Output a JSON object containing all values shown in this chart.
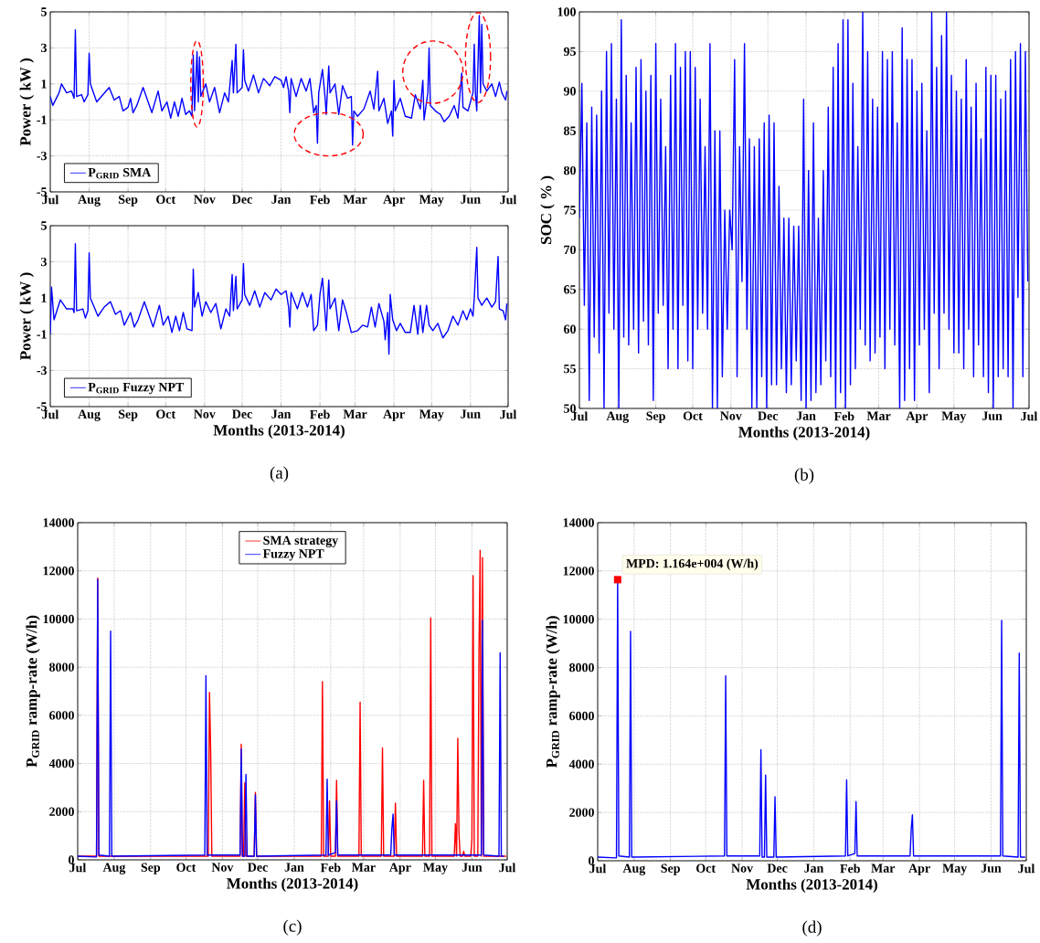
{
  "chart_data": [
    {
      "type": "line",
      "ylabel": "Power ( kW )",
      "xlim": [
        "2013-07-01",
        "2014-07-01"
      ],
      "ylim": [
        -5,
        5
      ],
      "yticks": [
        -5,
        -3,
        -1,
        1,
        3,
        5
      ],
      "grid": true,
      "legend": "bottom left",
      "xticks": [
        {
          "value": "2013-07-01",
          "label": "Jul"
        },
        {
          "value": "2013-08-01",
          "label": "Aug"
        },
        {
          "value": "2013-09-01",
          "label": "Sep"
        },
        {
          "value": "2013-10-01",
          "label": "Oct"
        },
        {
          "value": "2013-11-01",
          "label": "Nov"
        },
        {
          "value": "2013-12-01",
          "label": "Dec"
        },
        {
          "value": "2014-01-01",
          "label": "Jan"
        },
        {
          "value": "2014-02-01",
          "label": "Feb"
        },
        {
          "value": "2014-03-01",
          "label": "Mar"
        },
        {
          "value": "2014-04-01",
          "label": "Apr"
        },
        {
          "value": "2014-05-01",
          "label": "May"
        },
        {
          "value": "2014-06-01",
          "label": "Jun"
        },
        {
          "value": "2014-07-01",
          "label": "Jul"
        }
      ],
      "series": [
        {
          "name": "P$_{GRID}$ SMA",
          "color": "#0000ff",
          "x": [
            "2013-07-01",
            "2013-07-03",
            "2013-07-08",
            "2013-07-10",
            "2013-07-14",
            "2013-07-18",
            "2013-07-20",
            "2013-07-21",
            "2013-07-22",
            "2013-07-26",
            "2013-07-28",
            "2013-07-31",
            "2013-08-01",
            "2013-08-02",
            "2013-08-04",
            "2013-08-07",
            "2013-08-12",
            "2013-08-17",
            "2013-08-21",
            "2013-08-25",
            "2013-08-28",
            "2013-09-01",
            "2013-09-03",
            "2013-09-05",
            "2013-09-08",
            "2013-09-13",
            "2013-09-17",
            "2013-09-20",
            "2013-09-25",
            "2013-09-28",
            "2013-10-02",
            "2013-10-05",
            "2013-10-08",
            "2013-10-11",
            "2013-10-14",
            "2013-10-17",
            "2013-10-20",
            "2013-10-22",
            "2013-10-23",
            "2013-10-24",
            "2013-10-26",
            "2013-10-27",
            "2013-10-28",
            "2013-10-29",
            "2013-11-02",
            "2013-11-05",
            "2013-11-09",
            "2013-11-13",
            "2013-11-17",
            "2013-11-20",
            "2013-11-23",
            "2013-11-24",
            "2013-11-26",
            "2013-11-27",
            "2013-12-01",
            "2013-12-02",
            "2013-12-03",
            "2013-12-06",
            "2013-12-10",
            "2013-12-14",
            "2013-12-18",
            "2013-12-23",
            "2013-12-27",
            "2014-01-01",
            "2014-01-03",
            "2014-01-05",
            "2014-01-07",
            "2014-01-08",
            "2014-01-09",
            "2014-01-13",
            "2014-01-17",
            "2014-01-21",
            "2014-01-24",
            "2014-01-27",
            "2014-01-29",
            "2014-01-30",
            "2014-01-31",
            "2014-02-03",
            "2014-02-05",
            "2014-02-06",
            "2014-02-08",
            "2014-02-09",
            "2014-02-13",
            "2014-02-16",
            "2014-02-19",
            "2014-02-23",
            "2014-02-26",
            "2014-02-27",
            "2014-02-28",
            "2014-03-03",
            "2014-03-08",
            "2014-03-13",
            "2014-03-16",
            "2014-03-19",
            "2014-03-20",
            "2014-03-24",
            "2014-03-27",
            "2014-03-30",
            "2014-03-31",
            "2014-04-01",
            "2014-04-02",
            "2014-04-06",
            "2014-04-10",
            "2014-04-15",
            "2014-04-18",
            "2014-04-22",
            "2014-04-24",
            "2014-04-25",
            "2014-04-28",
            "2014-04-29",
            "2014-04-30",
            "2014-05-04",
            "2014-05-08",
            "2014-05-11",
            "2014-05-15",
            "2014-05-19",
            "2014-05-22",
            "2014-05-25",
            "2014-05-26",
            "2014-05-30",
            "2014-06-01",
            "2014-06-03",
            "2014-06-04",
            "2014-06-05",
            "2014-06-06",
            "2014-06-08",
            "2014-06-09",
            "2014-06-10",
            "2014-06-11",
            "2014-06-14",
            "2014-06-18",
            "2014-06-21",
            "2014-06-24",
            "2014-06-26",
            "2014-06-29",
            "2014-06-30"
          ],
          "values": [
            0.3,
            -0.2,
            0.5,
            1.0,
            0.5,
            0.6,
            0.2,
            4.0,
            0.3,
            0.4,
            0.0,
            0.4,
            2.7,
            1.0,
            0.6,
            0.0,
            0.4,
            0.8,
            0.1,
            0.3,
            -0.5,
            -0.3,
            0.2,
            -0.6,
            -0.2,
            0.8,
            0.0,
            -0.6,
            0.6,
            -0.5,
            0.0,
            -0.9,
            0.0,
            -0.8,
            0.2,
            -0.7,
            -0.5,
            -0.8,
            2.6,
            -0.5,
            2.8,
            0.0,
            2.5,
            0.3,
            1.0,
            0.0,
            0.8,
            -0.6,
            0.5,
            0.0,
            2.3,
            0.5,
            3.2,
            0.5,
            0.8,
            2.9,
            1.2,
            0.6,
            1.5,
            0.5,
            1.3,
            0.9,
            1.4,
            1.2,
            0.8,
            1.4,
            0.6,
            -0.6,
            1.3,
            0.3,
            1.3,
            0.6,
            1.3,
            -0.6,
            -0.2,
            -2.3,
            0.5,
            1.8,
            0.3,
            -0.7,
            2.0,
            0.5,
            1.0,
            -0.7,
            0.9,
            0.2,
            0.3,
            -2.4,
            -0.5,
            -0.8,
            -0.4,
            0.6,
            -0.4,
            1.7,
            -0.5,
            0.2,
            -1.2,
            -0.5,
            -1.9,
            1.2,
            -0.5,
            0.2,
            -0.8,
            -0.9,
            0.4,
            -0.4,
            1.2,
            -1.0,
            0.5,
            3.0,
            -0.2,
            -0.5,
            -0.7,
            -1.1,
            -0.8,
            -0.2,
            -0.9,
            1.6,
            -0.3,
            -0.5,
            0.0,
            0.5,
            3.2,
            0.4,
            -0.5,
            4.8,
            0.5,
            4.3,
            1.0,
            0.6,
            1.0,
            0.3,
            1.1,
            0.5,
            0.1,
            0.6
          ]
        }
      ]
    },
    {
      "type": "line",
      "xlabel": "Months (2013-2014)",
      "ylabel": "Power ( kW )",
      "xlim": [
        "2013-07-01",
        "2014-07-01"
      ],
      "ylim": [
        -5,
        5
      ],
      "yticks": [
        -5,
        -3,
        -1,
        1,
        3,
        5
      ],
      "grid": true,
      "legend": "bottom left",
      "annotations": [
        "(a)"
      ],
      "xticks": [
        {
          "value": "2013-07-01",
          "label": "Jul"
        },
        {
          "value": "2013-08-01",
          "label": "Aug"
        },
        {
          "value": "2013-09-01",
          "label": "Sep"
        },
        {
          "value": "2013-10-01",
          "label": "Oct"
        },
        {
          "value": "2013-11-01",
          "label": "Nov"
        },
        {
          "value": "2013-12-01",
          "label": "Dec"
        },
        {
          "value": "2014-01-01",
          "label": "Jan"
        },
        {
          "value": "2014-02-01",
          "label": "Feb"
        },
        {
          "value": "2014-03-01",
          "label": "Mar"
        },
        {
          "value": "2014-04-01",
          "label": "Apr"
        },
        {
          "value": "2014-05-01",
          "label": "May"
        },
        {
          "value": "2014-06-01",
          "label": "Jun"
        },
        {
          "value": "2014-07-01",
          "label": "Jul"
        }
      ],
      "series": [
        {
          "name": "P$_{GRID}$ Fuzzy NPT",
          "color": "#0000ff",
          "x": [
            "2013-07-01",
            "2013-07-02",
            "2013-07-04",
            "2013-07-09",
            "2013-07-14",
            "2013-07-19",
            "2013-07-20",
            "2013-07-21",
            "2013-07-22",
            "2013-07-27",
            "2013-07-29",
            "2013-07-31",
            "2013-08-01",
            "2013-08-02",
            "2013-08-05",
            "2013-08-08",
            "2013-08-13",
            "2013-08-18",
            "2013-08-22",
            "2013-08-26",
            "2013-08-29",
            "2013-09-03",
            "2013-09-06",
            "2013-09-09",
            "2013-09-14",
            "2013-09-18",
            "2013-09-21",
            "2013-09-26",
            "2013-09-29",
            "2013-10-03",
            "2013-10-06",
            "2013-10-09",
            "2013-10-12",
            "2013-10-15",
            "2013-10-18",
            "2013-10-22",
            "2013-10-23",
            "2013-10-24",
            "2013-10-27",
            "2013-10-30",
            "2013-11-02",
            "2013-11-06",
            "2013-11-10",
            "2013-11-14",
            "2013-11-18",
            "2013-11-21",
            "2013-11-23",
            "2013-11-24",
            "2013-11-26",
            "2013-11-27",
            "2013-12-01",
            "2013-12-02",
            "2013-12-03",
            "2013-12-07",
            "2013-12-11",
            "2013-12-15",
            "2013-12-19",
            "2013-12-24",
            "2013-12-28",
            "2014-01-01",
            "2014-01-05",
            "2014-01-07",
            "2014-01-08",
            "2014-01-09",
            "2014-01-14",
            "2014-01-18",
            "2014-01-22",
            "2014-01-25",
            "2014-01-27",
            "2014-01-30",
            "2014-02-01",
            "2014-02-03",
            "2014-02-05",
            "2014-02-06",
            "2014-02-08",
            "2014-02-09",
            "2014-02-13",
            "2014-02-16",
            "2014-02-19",
            "2014-02-22",
            "2014-02-26",
            "2014-03-03",
            "2014-03-07",
            "2014-03-11",
            "2014-03-14",
            "2014-03-17",
            "2014-03-20",
            "2014-03-24",
            "2014-03-25",
            "2014-03-27",
            "2014-03-28",
            "2014-03-29",
            "2014-03-31",
            "2014-04-03",
            "2014-04-06",
            "2014-04-10",
            "2014-04-14",
            "2014-04-17",
            "2014-04-20",
            "2014-04-22",
            "2014-04-24",
            "2014-04-27",
            "2014-04-29",
            "2014-05-02",
            "2014-05-06",
            "2014-05-10",
            "2014-05-14",
            "2014-05-18",
            "2014-05-22",
            "2014-05-26",
            "2014-05-29",
            "2014-06-01",
            "2014-06-03",
            "2014-06-04",
            "2014-06-06",
            "2014-06-07",
            "2014-06-10",
            "2014-06-14",
            "2014-06-18",
            "2014-06-21",
            "2014-06-23",
            "2014-06-24",
            "2014-06-27",
            "2014-06-29",
            "2014-06-30"
          ],
          "values": [
            -1.0,
            1.6,
            -0.2,
            0.9,
            0.4,
            0.4,
            0.2,
            4.0,
            0.3,
            0.4,
            -0.1,
            0.3,
            3.5,
            1.0,
            0.5,
            0.0,
            0.5,
            0.8,
            0.1,
            0.3,
            -0.5,
            0.2,
            -0.6,
            -0.2,
            0.8,
            0.0,
            -0.6,
            0.6,
            -0.5,
            0.0,
            -0.9,
            0.0,
            -0.8,
            0.2,
            -0.7,
            -0.8,
            2.6,
            0.5,
            1.3,
            0.0,
            0.8,
            0.2,
            0.7,
            -0.7,
            0.4,
            0.0,
            2.3,
            0.3,
            2.2,
            0.4,
            0.9,
            2.9,
            1.2,
            0.6,
            1.4,
            0.5,
            1.3,
            0.9,
            1.5,
            1.2,
            1.4,
            0.5,
            -0.6,
            1.3,
            0.4,
            1.3,
            0.5,
            1.2,
            -0.8,
            -0.5,
            1.2,
            2.1,
            0.2,
            -0.8,
            2.0,
            0.4,
            1.0,
            -0.8,
            0.9,
            0.2,
            -0.9,
            -0.8,
            -0.5,
            -0.6,
            0.5,
            -0.6,
            0.7,
            -0.3,
            -1.3,
            0.2,
            -2.1,
            1.2,
            -0.2,
            -0.8,
            -0.4,
            -0.9,
            -0.9,
            0.6,
            -1.0,
            0.6,
            -0.9,
            0.6,
            -0.5,
            -0.8,
            -0.4,
            -1.2,
            -0.8,
            0.0,
            -0.5,
            0.3,
            -0.2,
            0.4,
            0.0,
            1.0,
            3.8,
            1.0,
            0.6,
            1.0,
            0.5,
            0.8,
            3.3,
            0.4,
            0.3,
            -0.2,
            0.7
          ]
        }
      ]
    },
    {
      "type": "line",
      "xlabel": "Months (2013-2014)",
      "ylabel": "SOC ( % )",
      "xlim": [
        "2013-07-01",
        "2014-07-01"
      ],
      "ylim": [
        50,
        100
      ],
      "yticks": [
        50,
        55,
        60,
        65,
        70,
        75,
        80,
        85,
        90,
        95,
        100
      ],
      "grid": true,
      "annotations": [
        "(b)"
      ],
      "xticks": [
        {
          "value": "2013-07-01",
          "label": "Jul"
        },
        {
          "value": "2013-08-01",
          "label": "Aug"
        },
        {
          "value": "2013-09-01",
          "label": "Sep"
        },
        {
          "value": "2013-10-01",
          "label": "Oct"
        },
        {
          "value": "2013-11-01",
          "label": "Nov"
        },
        {
          "value": "2013-12-01",
          "label": "Dec"
        },
        {
          "value": "2014-01-01",
          "label": "Jan"
        },
        {
          "value": "2014-02-01",
          "label": "Feb"
        },
        {
          "value": "2014-03-01",
          "label": "Mar"
        },
        {
          "value": "2014-04-01",
          "label": "Apr"
        },
        {
          "value": "2014-05-01",
          "label": "May"
        },
        {
          "value": "2014-06-01",
          "label": "Jun"
        },
        {
          "value": "2014-07-01",
          "label": "Jul"
        }
      ],
      "series": [
        {
          "color": "#0000ff",
          "x": [
            "2013-07-01",
            "2013-07-03",
            "2013-07-05",
            "2013-07-07",
            "2013-07-09",
            "2013-07-11",
            "2013-07-13",
            "2013-07-15",
            "2013-07-17",
            "2013-07-19",
            "2013-07-21",
            "2013-07-23",
            "2013-07-25",
            "2013-07-27",
            "2013-07-29",
            "2013-07-31",
            "2013-08-02",
            "2013-08-04",
            "2013-08-06",
            "2013-08-08",
            "2013-08-10",
            "2013-08-12",
            "2013-08-14",
            "2013-08-16",
            "2013-08-18",
            "2013-08-20",
            "2013-08-22",
            "2013-08-24",
            "2013-08-26",
            "2013-08-28",
            "2013-08-30",
            "2013-09-01",
            "2013-09-03",
            "2013-09-05",
            "2013-09-07",
            "2013-09-09",
            "2013-09-11",
            "2013-09-13",
            "2013-09-15",
            "2013-09-17",
            "2013-09-19",
            "2013-09-21",
            "2013-09-23",
            "2013-09-25",
            "2013-09-27",
            "2013-09-29",
            "2013-10-01",
            "2013-10-03",
            "2013-10-05",
            "2013-10-07",
            "2013-10-09",
            "2013-10-11",
            "2013-10-13",
            "2013-10-15",
            "2013-10-17",
            "2013-10-19",
            "2013-10-21",
            "2013-10-23",
            "2013-10-25",
            "2013-10-27",
            "2013-10-29",
            "2013-10-31",
            "2013-11-02",
            "2013-11-04",
            "2013-11-06",
            "2013-11-08",
            "2013-11-10",
            "2013-11-12",
            "2013-11-14",
            "2013-11-16",
            "2013-11-18",
            "2013-11-20",
            "2013-11-22",
            "2013-11-24",
            "2013-11-26",
            "2013-11-28",
            "2013-11-30",
            "2013-12-02",
            "2013-12-04",
            "2013-12-06",
            "2013-12-08",
            "2013-12-10",
            "2013-12-12",
            "2013-12-14",
            "2013-12-16",
            "2013-12-18",
            "2013-12-20",
            "2013-12-22",
            "2013-12-24",
            "2013-12-26",
            "2013-12-28",
            "2013-12-30",
            "2014-01-01",
            "2014-01-03",
            "2014-01-05",
            "2014-01-07",
            "2014-01-09",
            "2014-01-11",
            "2014-01-13",
            "2014-01-15",
            "2014-01-17",
            "2014-01-19",
            "2014-01-21",
            "2014-01-23",
            "2014-01-25",
            "2014-01-27",
            "2014-01-29",
            "2014-01-31",
            "2014-02-02",
            "2014-02-04",
            "2014-02-06",
            "2014-02-08",
            "2014-02-10",
            "2014-02-12",
            "2014-02-14",
            "2014-02-16",
            "2014-02-18",
            "2014-02-20",
            "2014-02-22",
            "2014-02-24",
            "2014-02-26",
            "2014-02-28",
            "2014-03-02",
            "2014-03-04",
            "2014-03-06",
            "2014-03-08",
            "2014-03-10",
            "2014-03-12",
            "2014-03-14",
            "2014-03-16",
            "2014-03-18",
            "2014-03-20",
            "2014-03-22",
            "2014-03-24",
            "2014-03-26",
            "2014-03-28",
            "2014-03-30",
            "2014-04-01",
            "2014-04-03",
            "2014-04-05",
            "2014-04-07",
            "2014-04-09",
            "2014-04-11",
            "2014-04-13",
            "2014-04-15",
            "2014-04-17",
            "2014-04-19",
            "2014-04-21",
            "2014-04-23",
            "2014-04-25",
            "2014-04-27",
            "2014-04-29",
            "2014-05-01",
            "2014-05-03",
            "2014-05-05",
            "2014-05-07",
            "2014-05-09",
            "2014-05-11",
            "2014-05-13",
            "2014-05-15",
            "2014-05-17",
            "2014-05-19",
            "2014-05-21",
            "2014-05-23",
            "2014-05-25",
            "2014-05-27",
            "2014-05-29",
            "2014-05-31",
            "2014-06-02",
            "2014-06-04",
            "2014-06-06",
            "2014-06-08",
            "2014-06-10",
            "2014-06-12",
            "2014-06-14",
            "2014-06-16",
            "2014-06-18",
            "2014-06-20",
            "2014-06-22",
            "2014-06-24",
            "2014-06-26",
            "2014-06-28",
            "2014-06-30"
          ],
          "values": [
            74,
            91,
            63,
            86,
            51,
            88,
            59,
            87,
            57,
            90,
            50,
            95,
            62,
            96,
            60,
            89,
            50,
            99,
            59,
            92,
            58,
            86,
            60,
            93,
            57,
            94,
            61,
            90,
            58,
            92,
            51,
            96,
            62,
            89,
            63,
            83,
            55,
            92,
            60,
            96,
            55,
            93,
            63,
            95,
            56,
            95,
            55,
            93,
            60,
            89,
            62,
            83,
            60,
            96,
            50,
            85,
            50,
            85,
            54,
            75,
            60,
            75,
            70,
            94,
            54,
            83,
            66,
            96,
            60,
            84,
            50,
            83,
            50,
            84,
            54,
            86,
            50,
            87,
            53,
            86,
            53,
            78,
            55,
            74,
            52,
            74,
            53,
            73,
            56,
            73,
            51,
            89,
            50,
            80,
            51,
            86,
            52,
            74,
            53,
            80,
            56,
            88,
            54,
            93,
            50,
            96,
            52,
            99,
            50,
            99,
            53,
            91,
            55,
            83,
            60,
            100,
            58,
            95,
            56,
            89,
            57,
            88,
            59,
            95,
            55,
            94,
            60,
            95,
            58,
            86,
            50,
            98,
            51,
            94,
            55,
            94,
            51,
            90,
            58,
            91,
            60,
            85,
            52,
            100,
            62,
            93,
            55,
            97,
            62,
            100,
            60,
            92,
            57,
            90,
            57,
            89,
            55,
            94,
            60,
            88,
            54,
            91,
            58,
            84,
            54,
            93,
            52,
            92,
            50,
            92,
            54,
            89,
            55,
            90,
            54,
            94,
            50,
            95,
            64,
            96,
            54,
            95,
            66
          ]
        }
      ]
    },
    {
      "type": "line",
      "xlabel": "Months (2013-2014)",
      "ylabel": "P$_{GRID}$ ramp-rate (W/h)",
      "xlim": [
        "2013-07-01",
        "2014-07-01"
      ],
      "ylim": [
        0,
        14000
      ],
      "yticks": [
        0,
        2000,
        4000,
        6000,
        8000,
        10000,
        12000,
        14000
      ],
      "grid": true,
      "legend": "top",
      "annotations": [
        "(c)"
      ],
      "xticks": [
        {
          "value": "2013-07-01",
          "label": "Jul"
        },
        {
          "value": "2013-08-01",
          "label": "Aug"
        },
        {
          "value": "2013-09-01",
          "label": "Sep"
        },
        {
          "value": "2013-10-01",
          "label": "Oct"
        },
        {
          "value": "2013-11-01",
          "label": "Nov"
        },
        {
          "value": "2013-12-01",
          "label": "Dec"
        },
        {
          "value": "2014-01-01",
          "label": "Jan"
        },
        {
          "value": "2014-02-01",
          "label": "Feb"
        },
        {
          "value": "2014-03-01",
          "label": "Mar"
        },
        {
          "value": "2014-04-01",
          "label": "Apr"
        },
        {
          "value": "2014-05-01",
          "label": "May"
        },
        {
          "value": "2014-06-01",
          "label": "Jun"
        },
        {
          "value": "2014-07-01",
          "label": "Jul"
        }
      ],
      "series": [
        {
          "name": "SMA strategy",
          "color": "#ff0000",
          "x": [
            "2013-07-01",
            "2013-07-17",
            "2013-07-18",
            "2013-07-19",
            "2013-10-20",
            "2013-10-21",
            "2013-10-22",
            "2013-10-23",
            "2013-11-16",
            "2013-11-17",
            "2013-11-18",
            "2013-11-19",
            "2013-11-20",
            "2013-11-21",
            "2013-11-28",
            "2013-11-29",
            "2013-11-30",
            "2014-01-24",
            "2014-01-25",
            "2014-01-26",
            "2014-01-30",
            "2014-01-31",
            "2014-02-01",
            "2014-02-05",
            "2014-02-06",
            "2014-02-07",
            "2014-02-25",
            "2014-02-26",
            "2014-02-27",
            "2014-03-16",
            "2014-03-17",
            "2014-03-18",
            "2014-03-27",
            "2014-03-28",
            "2014-03-29",
            "2014-04-20",
            "2014-04-21",
            "2014-04-22",
            "2014-04-26",
            "2014-04-27",
            "2014-04-28",
            "2014-05-17",
            "2014-05-18",
            "2014-05-19",
            "2014-05-20",
            "2014-05-21",
            "2014-05-22",
            "2014-05-24",
            "2014-05-25",
            "2014-05-26",
            "2014-05-31",
            "2014-06-01",
            "2014-06-02",
            "2014-06-03",
            "2014-06-06",
            "2014-06-07",
            "2014-06-08",
            "2014-06-09",
            "2014-06-10",
            "2014-06-11",
            "2014-06-30"
          ],
          "values": [
            150,
            150,
            11700,
            150,
            150,
            6950,
            4600,
            150,
            150,
            4800,
            150,
            150,
            3200,
            150,
            150,
            2800,
            150,
            150,
            7400,
            150,
            150,
            2450,
            150,
            150,
            3300,
            150,
            150,
            6550,
            150,
            150,
            4650,
            150,
            150,
            2350,
            150,
            150,
            3300,
            150,
            150,
            10050,
            150,
            150,
            1500,
            150,
            5050,
            1100,
            150,
            150,
            350,
            150,
            150,
            850,
            11800,
            150,
            150,
            8650,
            12850,
            150,
            12550,
            150,
            150
          ]
        },
        {
          "name": "Fuzzy NPT",
          "color": "#0000ff",
          "x": [
            "2013-07-01",
            "2013-07-17",
            "2013-07-18",
            "2013-07-19",
            "2013-07-28",
            "2013-07-29",
            "2013-07-30",
            "2013-10-17",
            "2013-10-18",
            "2013-10-19",
            "2013-11-16",
            "2013-11-17",
            "2013-11-18",
            "2013-11-20",
            "2013-11-21",
            "2013-11-22",
            "2013-11-28",
            "2013-11-29",
            "2013-11-30",
            "2014-01-28",
            "2014-01-29",
            "2014-01-30",
            "2014-02-05",
            "2014-02-06",
            "2014-02-07",
            "2014-03-24",
            "2014-03-25",
            "2014-03-26",
            "2014-03-27",
            "2014-06-09",
            "2014-06-10",
            "2014-06-11",
            "2014-06-24",
            "2014-06-25",
            "2014-06-26",
            "2014-06-28"
          ],
          "values": [
            150,
            120,
            11650,
            200,
            150,
            9500,
            150,
            200,
            7650,
            200,
            200,
            4600,
            150,
            150,
            3550,
            150,
            150,
            2700,
            150,
            200,
            3350,
            200,
            300,
            2450,
            200,
            200,
            1300,
            1900,
            200,
            200,
            9950,
            200,
            150,
            8600,
            150,
            150
          ]
        }
      ]
    },
    {
      "type": "line",
      "xlabel": "Months (2013-2014)",
      "ylabel": "P$_{GRID}$ ramp-rate (W/h)",
      "xlim": [
        "2013-07-01",
        "2014-07-01"
      ],
      "ylim": [
        0,
        14000
      ],
      "yticks": [
        0,
        2000,
        4000,
        6000,
        8000,
        10000,
        12000,
        14000
      ],
      "grid": true,
      "annotations": [
        {
          "text": "MPD: 1.164e+004 (W/h)",
          "x": "2013-07-18",
          "y": 11640
        },
        "(d)"
      ],
      "xticks": [
        {
          "value": "2013-07-01",
          "label": "Jul"
        },
        {
          "value": "2013-08-01",
          "label": "Aug"
        },
        {
          "value": "2013-09-01",
          "label": "Sep"
        },
        {
          "value": "2013-10-01",
          "label": "Oct"
        },
        {
          "value": "2013-11-01",
          "label": "Nov"
        },
        {
          "value": "2013-12-01",
          "label": "Dec"
        },
        {
          "value": "2014-01-01",
          "label": "Jan"
        },
        {
          "value": "2014-02-01",
          "label": "Feb"
        },
        {
          "value": "2014-03-01",
          "label": "Mar"
        },
        {
          "value": "2014-04-01",
          "label": "Apr"
        },
        {
          "value": "2014-05-01",
          "label": "May"
        },
        {
          "value": "2014-06-01",
          "label": "Jun"
        },
        {
          "value": "2014-07-01",
          "label": "Jul"
        }
      ],
      "series": [
        {
          "color": "#0000ff",
          "x": [
            "2013-07-01",
            "2013-07-17",
            "2013-07-18",
            "2013-07-19",
            "2013-07-28",
            "2013-07-29",
            "2013-07-30",
            "2013-10-17",
            "2013-10-18",
            "2013-10-19",
            "2013-11-16",
            "2013-11-17",
            "2013-11-18",
            "2013-11-20",
            "2013-11-21",
            "2013-11-22",
            "2013-11-28",
            "2013-11-29",
            "2013-11-30",
            "2014-01-28",
            "2014-01-29",
            "2014-01-30",
            "2014-02-05",
            "2014-02-06",
            "2014-02-07",
            "2014-03-24",
            "2014-03-25",
            "2014-03-26",
            "2014-03-27",
            "2014-06-09",
            "2014-06-10",
            "2014-06-11",
            "2014-06-24",
            "2014-06-25",
            "2014-06-26",
            "2014-06-30"
          ],
          "values": [
            150,
            120,
            11640,
            200,
            150,
            9500,
            150,
            200,
            7650,
            200,
            200,
            4600,
            150,
            150,
            3550,
            150,
            150,
            2650,
            150,
            200,
            3350,
            200,
            300,
            2450,
            200,
            200,
            1300,
            1900,
            200,
            200,
            9950,
            200,
            150,
            8600,
            150,
            150
          ]
        }
      ]
    }
  ]
}
